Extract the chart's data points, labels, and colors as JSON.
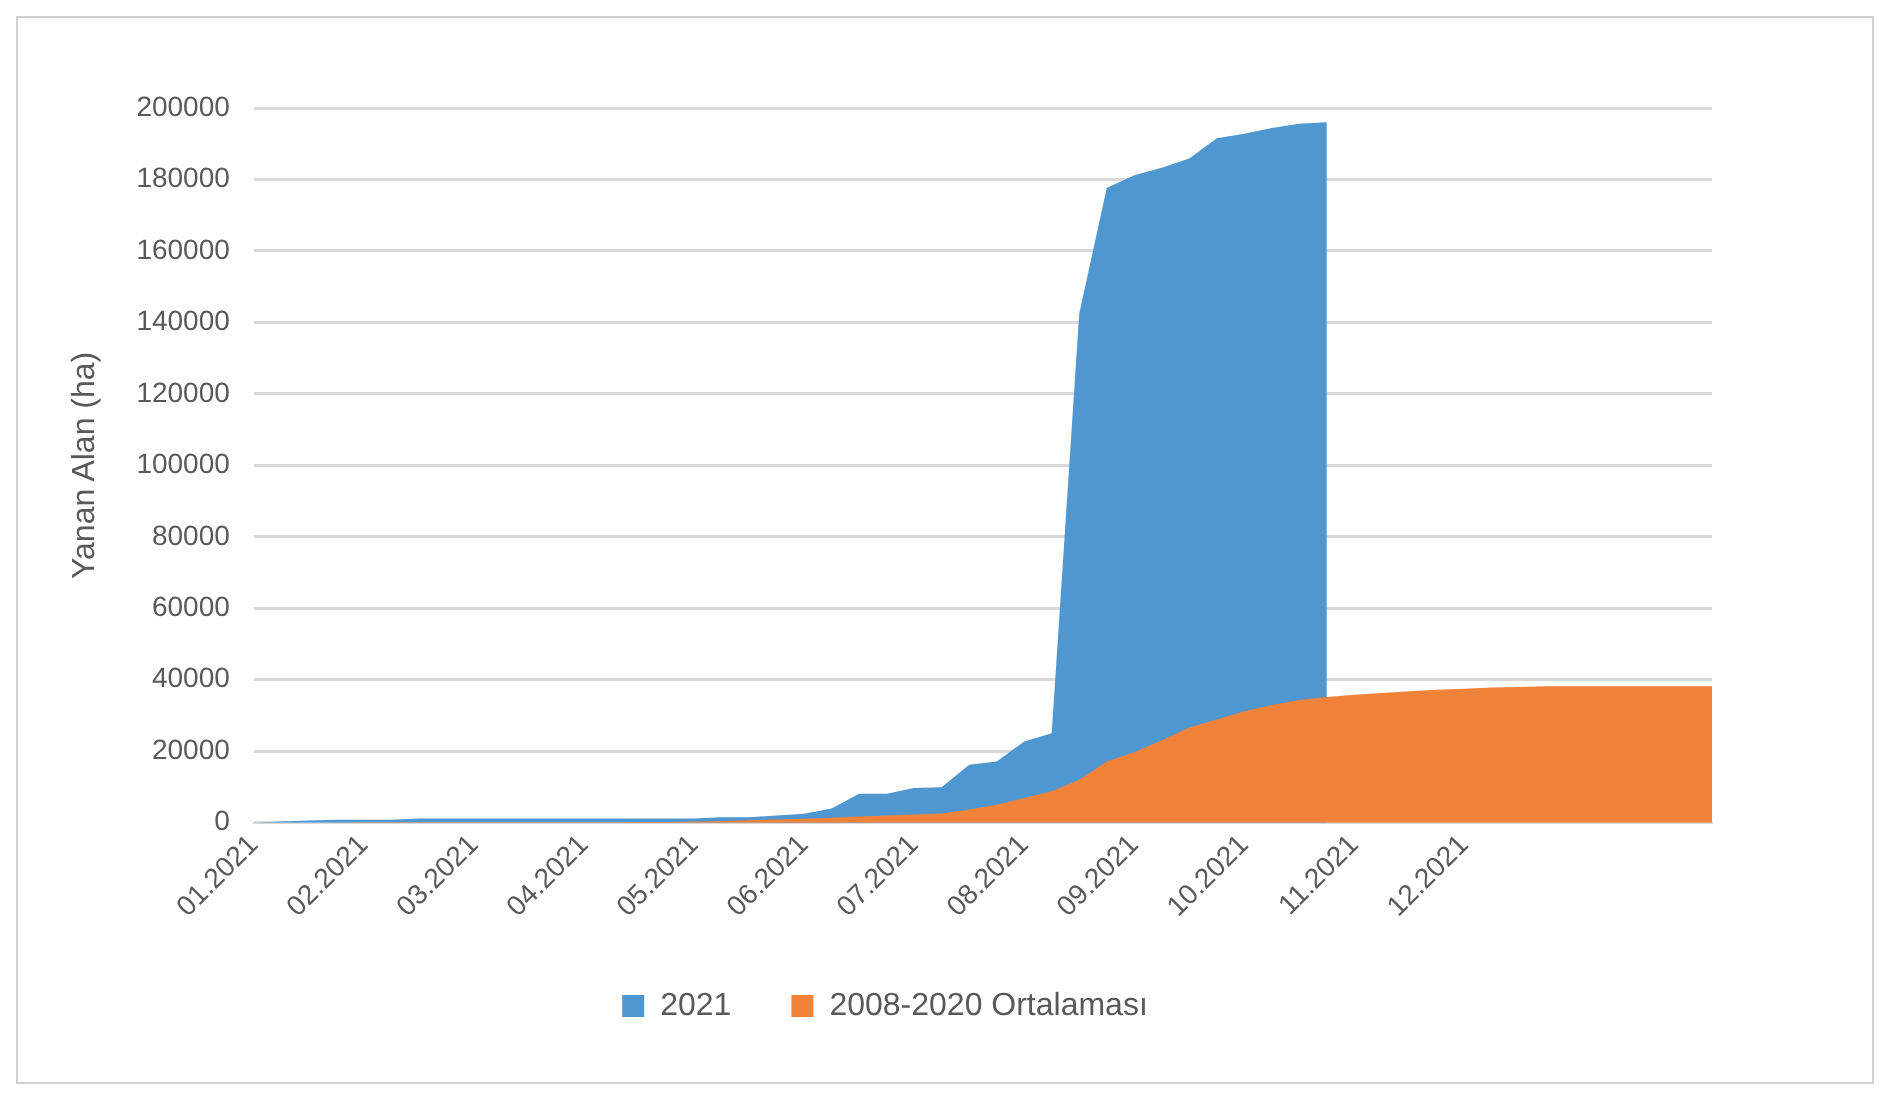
{
  "chart_data": {
    "type": "area",
    "ylabel": "Yanan Alan (ha)",
    "categories": [
      "01.2021",
      null,
      null,
      null,
      "02.2021",
      null,
      null,
      null,
      "03.2021",
      null,
      null,
      null,
      "04.2021",
      null,
      null,
      null,
      "05.2021",
      null,
      null,
      null,
      "06.2021",
      null,
      null,
      null,
      "07.2021",
      null,
      null,
      null,
      "08.2021",
      null,
      null,
      null,
      "09.2021",
      null,
      null,
      null,
      "10.2021",
      null,
      null,
      null,
      "11.2021",
      null,
      null,
      null,
      "12.2021",
      null,
      null,
      null,
      null,
      null,
      null,
      null,
      null,
      null
    ],
    "series": [
      {
        "name": "2021",
        "color": "#4f97d1",
        "values": [
          0,
          300,
          600,
          800,
          800,
          800,
          1200,
          1200,
          1200,
          1200,
          1200,
          1200,
          1200,
          1200,
          1200,
          1200,
          1200,
          1500,
          1500,
          2000,
          2500,
          4000,
          8100,
          8100,
          9700,
          9900,
          16200,
          17100,
          22700,
          25000,
          142400,
          177600,
          181200,
          183300,
          185900,
          191500,
          192800,
          194400,
          195600,
          196000,
          null,
          null,
          null,
          null,
          null,
          null,
          null,
          null,
          null,
          null,
          null,
          null,
          null,
          null
        ]
      },
      {
        "name": "2008-2020 Ortalaması",
        "color": "#f0823a",
        "values": [
          0,
          0,
          0,
          0,
          100,
          100,
          100,
          100,
          100,
          100,
          100,
          100,
          100,
          100,
          200,
          200,
          300,
          500,
          700,
          900,
          1100,
          1400,
          1700,
          2000,
          2300,
          2600,
          3700,
          5000,
          6900,
          8800,
          12000,
          17100,
          19700,
          23100,
          26600,
          28900,
          31200,
          32900,
          34300,
          35200,
          35800,
          36300,
          36800,
          37200,
          37500,
          37800,
          38000,
          38200,
          38200,
          38200,
          38200,
          38200,
          38200,
          38200
        ]
      }
    ],
    "ylim": [
      0,
      200000
    ],
    "yticks": [
      0,
      20000,
      40000,
      60000,
      80000,
      100000,
      120000,
      140000,
      160000,
      180000,
      200000
    ],
    "grid": "y",
    "legend": "bottom"
  }
}
